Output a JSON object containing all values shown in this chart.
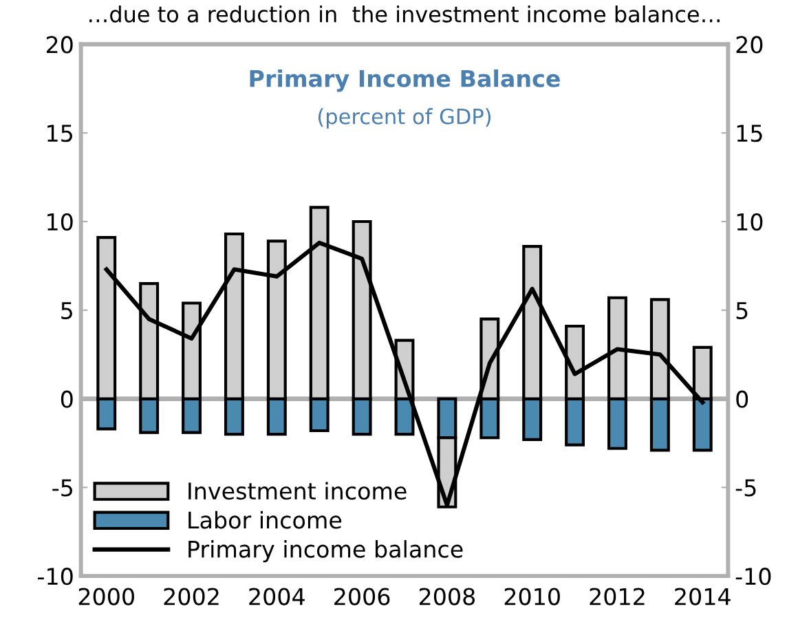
{
  "chart_data": {
    "type": "bar",
    "title": "Primary Income Balance",
    "subtitle": "(percent of GDP)",
    "annotations": [
      "…due to a reduction in  the investment income balance…"
    ],
    "categories": [
      "2000",
      null,
      "2002",
      null,
      "2004",
      null,
      "2006",
      null,
      "2008",
      null,
      "2010",
      null,
      "2012",
      null,
      "2014"
    ],
    "stacked": true,
    "series": [
      {
        "name": "Labor income",
        "color": "#4a89b0",
        "values": [
          -1.7,
          -1.9,
          -1.9,
          -2.0,
          -2.0,
          -1.8,
          -2.0,
          -2.0,
          -2.2,
          -2.2,
          -2.3,
          -2.6,
          -2.8,
          -2.9,
          -2.9
        ]
      },
      {
        "name": "Investment income",
        "color": "#cfcfcf",
        "values": [
          9.1,
          6.5,
          5.4,
          9.3,
          8.9,
          10.8,
          10.0,
          3.3,
          -3.9,
          4.5,
          8.6,
          4.1,
          5.7,
          5.6,
          2.9
        ]
      },
      {
        "name": "Primary income balance",
        "type": "line",
        "color": "#000000",
        "values": [
          7.3,
          4.5,
          3.4,
          7.3,
          6.9,
          8.8,
          7.9,
          1.0,
          -6.0,
          2.0,
          6.2,
          1.4,
          2.8,
          2.5,
          -0.2
        ]
      }
    ],
    "ylim": [
      -10,
      20
    ],
    "yticks": [
      -10,
      -5,
      0,
      5,
      10,
      15,
      20
    ],
    "y2lim": [
      -10,
      20
    ],
    "y2ticks": [
      -10,
      -5,
      0,
      5,
      10,
      15,
      20
    ],
    "ref_lines": [
      {
        "axis": "y",
        "value": 0,
        "color": "#b0b0b0"
      }
    ],
    "legend": "bottom left"
  }
}
